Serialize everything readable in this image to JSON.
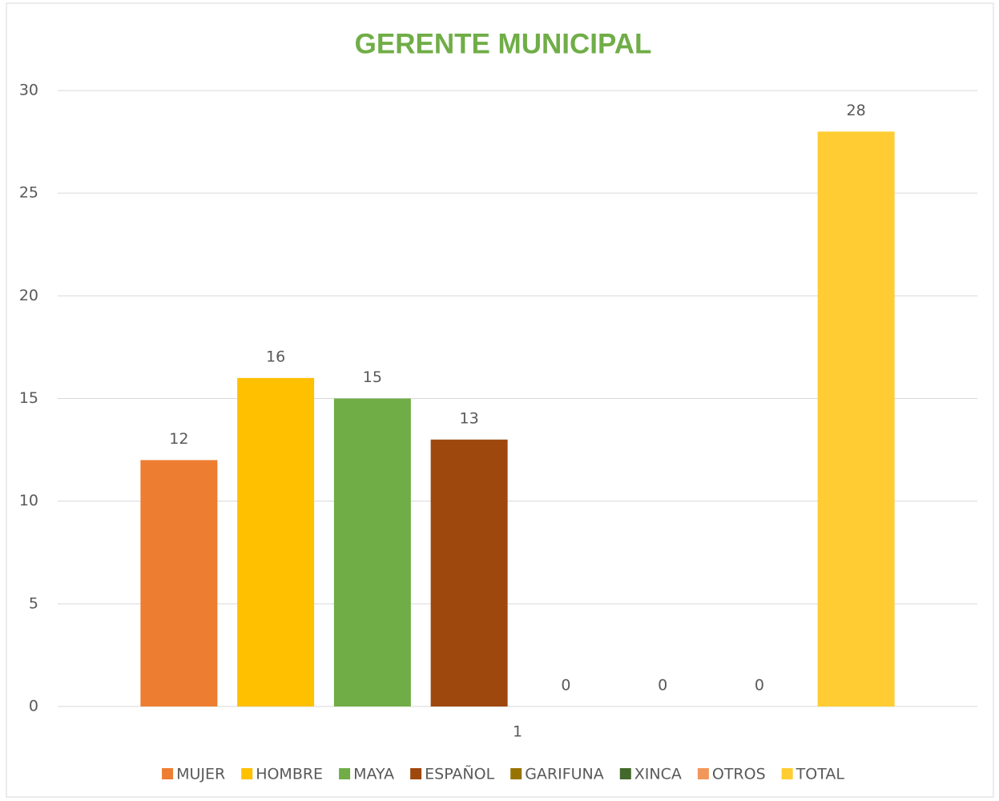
{
  "chart_data": {
    "type": "bar",
    "title": "GERENTE MUNICIPAL",
    "categories": [
      "1"
    ],
    "series": [
      {
        "name": "MUJER",
        "color": "#ed7d31",
        "values": [
          12
        ]
      },
      {
        "name": "HOMBRE",
        "color": "#ffc000",
        "values": [
          16
        ]
      },
      {
        "name": "MAYA",
        "color": "#70ad47",
        "values": [
          15
        ]
      },
      {
        "name": "ESPAÑOL",
        "color": "#9e480e",
        "values": [
          13
        ]
      },
      {
        "name": "GARIFUNA",
        "color": "#997300",
        "values": [
          0
        ]
      },
      {
        "name": "XINCA",
        "color": "#43682b",
        "values": [
          0
        ]
      },
      {
        "name": "OTROS",
        "color": "#f1975a",
        "values": [
          0
        ]
      },
      {
        "name": "TOTAL",
        "color": "#ffcd33",
        "values": [
          28
        ]
      }
    ],
    "ylim": [
      0,
      30
    ],
    "yticks": [
      0,
      5,
      10,
      15,
      20,
      25,
      30
    ],
    "grid": true,
    "legend": "bottom"
  }
}
